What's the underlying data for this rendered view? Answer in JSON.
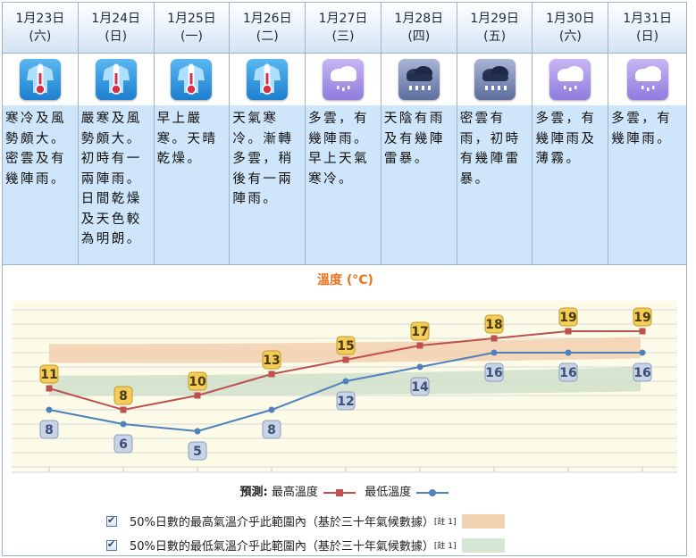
{
  "forecast": [
    {
      "date": "1月23日",
      "weekday": "(六)",
      "icon": "cold-icon",
      "text": "寒冷及風勢頗大。密雲及有幾陣雨。"
    },
    {
      "date": "1月24日",
      "weekday": "(日)",
      "icon": "cold-icon",
      "text": "嚴寒及風勢頗大。初時有一兩陣雨。日間乾燥及天色較為明朗。"
    },
    {
      "date": "1月25日",
      "weekday": "(一)",
      "icon": "cold-icon",
      "text": "早上嚴寒。天晴乾燥。"
    },
    {
      "date": "1月26日",
      "weekday": "(二)",
      "icon": "cold-icon",
      "text": "天氣寒冷。漸轉多雲，稍後有一兩陣雨。"
    },
    {
      "date": "1月27日",
      "weekday": "(三)",
      "icon": "showers-icon",
      "text": "多雲，有幾陣雨。早上天氣寒冷。"
    },
    {
      "date": "1月28日",
      "weekday": "(四)",
      "icon": "thunderstorm-icon",
      "text": "天陰有雨及有幾陣雷暴。"
    },
    {
      "date": "1月29日",
      "weekday": "(五)",
      "icon": "thunderstorm-icon",
      "text": "密雲有雨，初時有幾陣雷暴。"
    },
    {
      "date": "1月30日",
      "weekday": "(六)",
      "icon": "showers-icon",
      "text": "多雲，有幾陣雨及薄霧。"
    },
    {
      "date": "1月31日",
      "weekday": "(日)",
      "icon": "showers-icon",
      "text": "多雲，有幾陣雨。"
    }
  ],
  "chart_title": "溫度 (°C)",
  "chart_data": {
    "type": "line",
    "categories": [
      "1月23日",
      "1月24日",
      "1月25日",
      "1月26日",
      "1月27日",
      "1月28日",
      "1月29日",
      "1月30日",
      "1月31日"
    ],
    "series": [
      {
        "name": "最高溫度",
        "values": [
          11,
          8,
          10,
          13,
          15,
          17,
          18,
          19,
          19
        ],
        "color": "#c0504d"
      },
      {
        "name": "最低溫度",
        "values": [
          8,
          6,
          5,
          8,
          12,
          14,
          16,
          16,
          16
        ],
        "color": "#4f81bd"
      }
    ],
    "ranges": [
      {
        "name": "50%日數的最高氣溫介乎此範圍內",
        "color": "#f2c9a8"
      },
      {
        "name": "50%日數的最低氣溫介乎此範圍內",
        "color": "#d3e3c8"
      }
    ],
    "ylim": [
      0,
      24
    ],
    "grid": true
  },
  "legend": {
    "prefix": "預測:",
    "max_label": "最高溫度",
    "min_label": "最低溫度"
  },
  "range_rows": [
    {
      "text": "50%日數的最高氣溫介乎此範圍內（基於三十年氣候數據）",
      "note": "[註 1]",
      "color": "#f0d2b0"
    },
    {
      "text": "50%日數的最低氣溫介乎此範圍內（基於三十年氣候數據）",
      "note": "[註 1]",
      "color": "#d6e6d4"
    }
  ]
}
